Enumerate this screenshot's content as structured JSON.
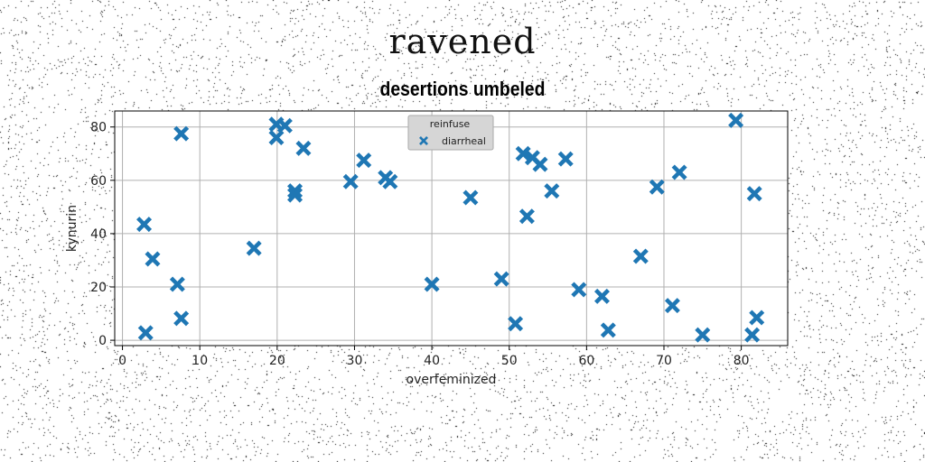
{
  "suptitle": "ravened",
  "chart_data": {
    "type": "scatter",
    "title": "desertions umbeled",
    "xlabel": "overfeminized",
    "ylabel": "kynurin",
    "xlim": [
      -1,
      86
    ],
    "ylim": [
      -2,
      86
    ],
    "xticks": [
      0,
      10,
      20,
      30,
      40,
      50,
      60,
      70,
      80
    ],
    "yticks": [
      0,
      20,
      40,
      60,
      80
    ],
    "grid": true,
    "legend": {
      "title": "reinfuse",
      "placement": "top-center"
    },
    "marker_color": "#1f77b4",
    "marker": "X",
    "series": [
      {
        "name": "diarrheal",
        "points": [
          [
            2.8,
            43.5
          ],
          [
            3.9,
            30.5
          ],
          [
            3.0,
            2.8
          ],
          [
            7.1,
            21.0
          ],
          [
            7.6,
            77.5
          ],
          [
            7.6,
            8.2
          ],
          [
            17.0,
            34.5
          ],
          [
            19.9,
            81.0
          ],
          [
            19.9,
            76.0
          ],
          [
            21.0,
            80.5
          ],
          [
            22.3,
            56.0
          ],
          [
            22.3,
            54.5
          ],
          [
            23.4,
            72.0
          ],
          [
            29.5,
            59.5
          ],
          [
            31.2,
            67.5
          ],
          [
            34.0,
            61.0
          ],
          [
            34.6,
            59.5
          ],
          [
            40.0,
            21.0
          ],
          [
            45.0,
            53.5
          ],
          [
            49.0,
            23.0
          ],
          [
            50.8,
            6.2
          ],
          [
            51.8,
            70.0
          ],
          [
            52.3,
            46.5
          ],
          [
            53.0,
            68.5
          ],
          [
            54.0,
            66.0
          ],
          [
            55.5,
            56.0
          ],
          [
            57.3,
            68.0
          ],
          [
            59.0,
            19.0
          ],
          [
            62.0,
            16.5
          ],
          [
            62.8,
            3.8
          ],
          [
            67.0,
            31.5
          ],
          [
            69.1,
            57.5
          ],
          [
            71.1,
            13.0
          ],
          [
            72.0,
            63.0
          ],
          [
            75.0,
            2.0
          ],
          [
            79.3,
            82.5
          ],
          [
            81.4,
            2.0
          ],
          [
            81.7,
            55.0
          ],
          [
            82.0,
            8.5
          ]
        ]
      }
    ]
  }
}
